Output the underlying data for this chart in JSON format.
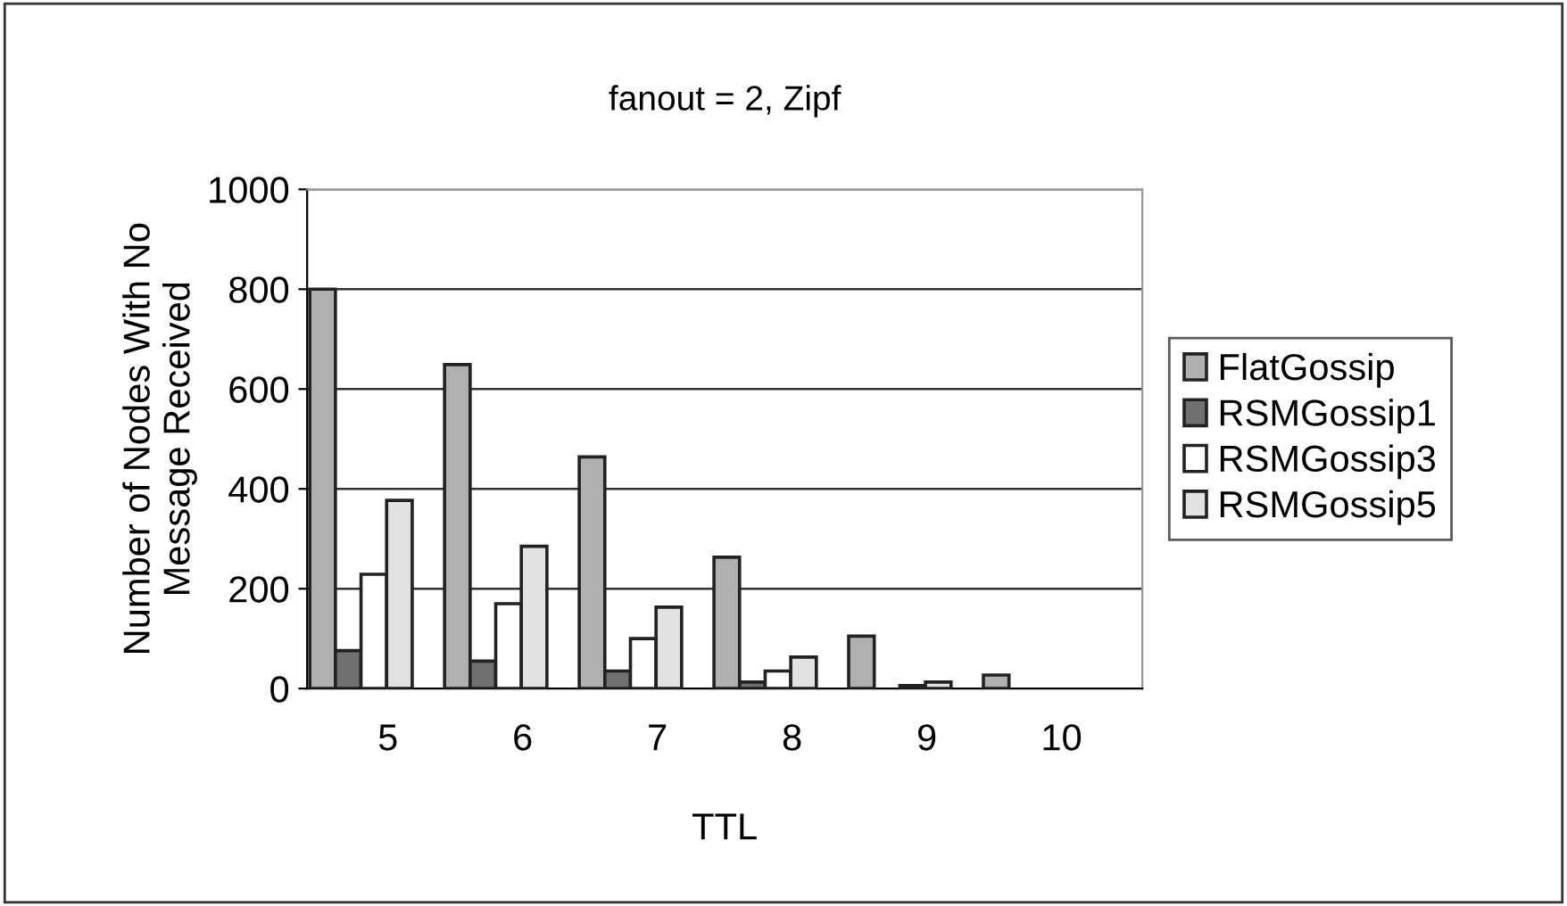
{
  "chart_data": {
    "type": "bar",
    "title": "fanout = 2, Zipf",
    "xlabel": "TTL",
    "ylabel": "Number of Nodes With No\nMessage Received",
    "categories": [
      "5",
      "6",
      "7",
      "8",
      "9",
      "10"
    ],
    "series": [
      {
        "name": "FlatGossip",
        "color": "#b0b0b0",
        "values": [
          800,
          649,
          464,
          263,
          105,
          27
        ]
      },
      {
        "name": "RSMGossip1",
        "color": "#707070",
        "values": [
          76,
          55,
          35,
          13,
          null,
          null
        ]
      },
      {
        "name": "RSMGossip3",
        "color": "#ffffff",
        "values": [
          229,
          170,
          100,
          35,
          6,
          null
        ]
      },
      {
        "name": "RSMGossip5",
        "color": "#e2e2e2",
        "values": [
          377,
          285,
          163,
          63,
          13,
          null
        ]
      }
    ],
    "ylim": [
      0,
      1000
    ],
    "yticks": [
      0,
      200,
      400,
      600,
      800,
      1000
    ],
    "grid": "y",
    "legend": "right"
  }
}
